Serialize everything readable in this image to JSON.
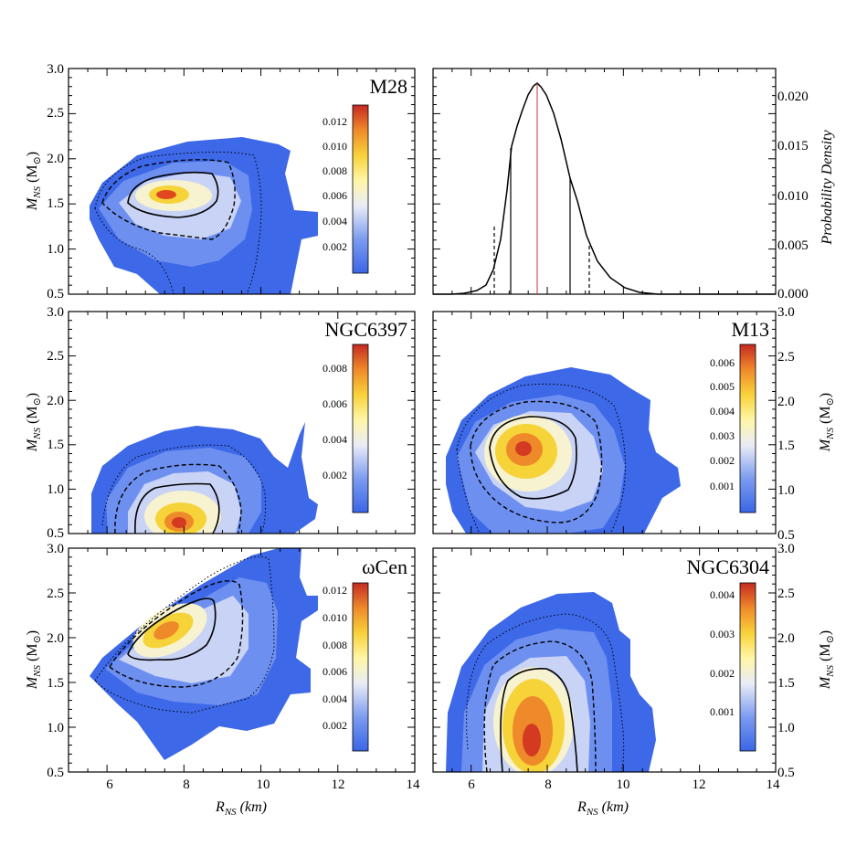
{
  "figure": {
    "x_label_main": "R",
    "x_label_sub": "NS",
    "x_label_unit": " (km)",
    "y_label_main": "M",
    "y_label_sub": "NS",
    "y_label_unit_open": " (M",
    "y_label_unit_sub": "⊙",
    "y_label_unit_close": ")",
    "density_label": "Probability Density"
  },
  "chart_data": [
    {
      "type": "heatmap",
      "name": "M28",
      "xlim": [
        5,
        14
      ],
      "ylim": [
        0.5,
        3.0
      ],
      "x_ticks": [
        "6",
        "8",
        "10",
        "12",
        "14"
      ],
      "y_ticks": [
        "0.5",
        "1.0",
        "1.5",
        "2.0",
        "2.5",
        "3.0"
      ],
      "colorbar_ticks": [
        "0.002",
        "0.004",
        "0.006",
        "0.008",
        "0.010",
        "0.012"
      ],
      "colorbar_max": 0.0135,
      "peak": {
        "r": 7.6,
        "m": 1.62
      },
      "contours_note": "solid, dashed and dotted credible regions"
    },
    {
      "type": "line",
      "name": "Probability Density (marginal R_NS)",
      "xlim": [
        5,
        14
      ],
      "ylim": [
        0.0,
        0.023
      ],
      "x": [
        5.4,
        5.8,
        6.2,
        6.6,
        7.0,
        7.4,
        7.6,
        7.8,
        8.2,
        8.6,
        9.0,
        9.4,
        9.8,
        10.2,
        10.6,
        11.0
      ],
      "y": [
        0.0002,
        0.0008,
        0.002,
        0.006,
        0.0148,
        0.0205,
        0.0212,
        0.0212,
        0.0175,
        0.0118,
        0.0062,
        0.0028,
        0.0011,
        0.0004,
        0.0001,
        0.0
      ],
      "median": 7.75,
      "sigma1": [
        7.05,
        8.6
      ],
      "sigma2": [
        6.6,
        9.1
      ],
      "y_ticks": [
        "0.000",
        "0.005",
        "0.010",
        "0.015",
        "0.020"
      ]
    },
    {
      "type": "heatmap",
      "name": "NGC6397",
      "xlim": [
        5,
        14
      ],
      "ylim": [
        0.5,
        3.0
      ],
      "y_ticks": [
        "0.5",
        "1.0",
        "1.5",
        "2.0",
        "2.5",
        "3.0"
      ],
      "colorbar_ticks": [
        "0.002",
        "0.004",
        "0.006",
        "0.008"
      ],
      "colorbar_max": 0.0095,
      "peak": {
        "r": 7.7,
        "m": 0.65
      }
    },
    {
      "type": "heatmap",
      "name": "M13",
      "xlim": [
        5,
        14
      ],
      "ylim": [
        0.5,
        3.0
      ],
      "y_ticks": [
        "0.5",
        "1.0",
        "1.5",
        "2.0",
        "2.5",
        "3.0"
      ],
      "colorbar_ticks": [
        "0.001",
        "0.002",
        "0.003",
        "0.004",
        "0.005",
        "0.006"
      ],
      "colorbar_max": 0.0069,
      "peak": {
        "r": 7.4,
        "m": 1.42
      }
    },
    {
      "type": "heatmap",
      "name": "ωCen",
      "xlim": [
        5,
        14
      ],
      "ylim": [
        0.5,
        3.0
      ],
      "x_ticks": [
        "6",
        "8",
        "10",
        "12",
        "14"
      ],
      "y_ticks": [
        "0.5",
        "1.0",
        "1.5",
        "2.0",
        "2.5",
        "3.0"
      ],
      "colorbar_ticks": [
        "0.002",
        "0.004",
        "0.006",
        "0.008",
        "0.010",
        "0.012"
      ],
      "colorbar_max": 0.0125,
      "peak": {
        "r": 7.6,
        "m": 2.1
      }
    },
    {
      "type": "heatmap",
      "name": "NGC6304",
      "xlim": [
        5,
        14
      ],
      "ylim": [
        0.5,
        3.0
      ],
      "x_ticks": [
        "6",
        "8",
        "10",
        "12",
        "14"
      ],
      "y_ticks": [
        "0.5",
        "1.0",
        "1.5",
        "2.0",
        "2.5",
        "3.0"
      ],
      "colorbar_ticks": [
        "0.001",
        "0.002",
        "0.003",
        "0.004"
      ],
      "colorbar_max": 0.0043,
      "peak": {
        "r": 7.6,
        "m": 0.95
      }
    }
  ]
}
